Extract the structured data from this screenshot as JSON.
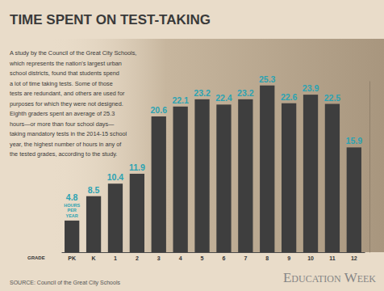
{
  "chart_data": {
    "type": "bar",
    "title": "TIME SPENT ON TEST-TAKING",
    "description": [
      "A study by the Council of the Great City Schools,",
      "which represents the nation's largest urban",
      "school districts, found that students spend",
      "a lot of time taking tests. Some of those",
      "tests are redundant, and others are used for",
      "purposes for which they were not designed.",
      "Eighth graders spent an average of 25.3",
      "hours—or more than four school days—",
      "taking mandatory tests in the 2014-15 school",
      "year, the highest number of hours in any of",
      "the tested grades, according to the study."
    ],
    "x_label": "GRADE",
    "categories": [
      "PK",
      "K",
      "1",
      "2",
      "3",
      "4",
      "5",
      "6",
      "7",
      "8",
      "9",
      "10",
      "11",
      "12"
    ],
    "values": [
      4.8,
      8.5,
      10.4,
      11.9,
      20.6,
      22.1,
      23.2,
      22.4,
      23.2,
      25.3,
      22.6,
      23.9,
      22.5,
      15.9
    ],
    "color": "#3e3e3e",
    "ylim": [
      0,
      26
    ],
    "grid": false,
    "data_labels": true,
    "tick_labels": "x",
    "annotations": [
      "HOURS PER YEAR"
    ],
    "source": "SOURCE: Council of the Great City Schools",
    "publisher": "Education Week"
  }
}
